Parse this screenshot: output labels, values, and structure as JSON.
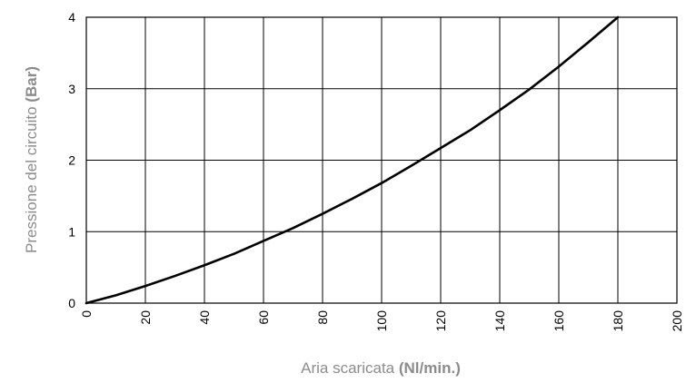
{
  "chart_data": {
    "type": "line",
    "title": "",
    "xlabel": "Aria scaricata",
    "xlabel_unit": "(Nl/min.)",
    "ylabel": "Pressione del circuito",
    "ylabel_unit": "(Bar)",
    "xlim": [
      0,
      200
    ],
    "ylim": [
      0,
      4
    ],
    "x_ticks": [
      "0",
      "20",
      "40",
      "60",
      "80",
      "100",
      "120",
      "140",
      "160",
      "180",
      "200"
    ],
    "y_ticks": [
      "0",
      "1",
      "2",
      "3",
      "4"
    ],
    "grid": true,
    "legend": "none",
    "line_color": "#000000",
    "grid_color": "#000000",
    "axis_title_color": "#8c8c8c",
    "series": [
      {
        "x": [
          0,
          10,
          20,
          30,
          40,
          50,
          60,
          70,
          80,
          90,
          100,
          110,
          120,
          130,
          140,
          150,
          160,
          170,
          180
        ],
        "values": [
          0,
          0.11,
          0.24,
          0.38,
          0.53,
          0.69,
          0.87,
          1.05,
          1.25,
          1.46,
          1.68,
          1.92,
          2.17,
          2.42,
          2.7,
          2.99,
          3.31,
          3.65,
          4.0
        ]
      }
    ]
  }
}
